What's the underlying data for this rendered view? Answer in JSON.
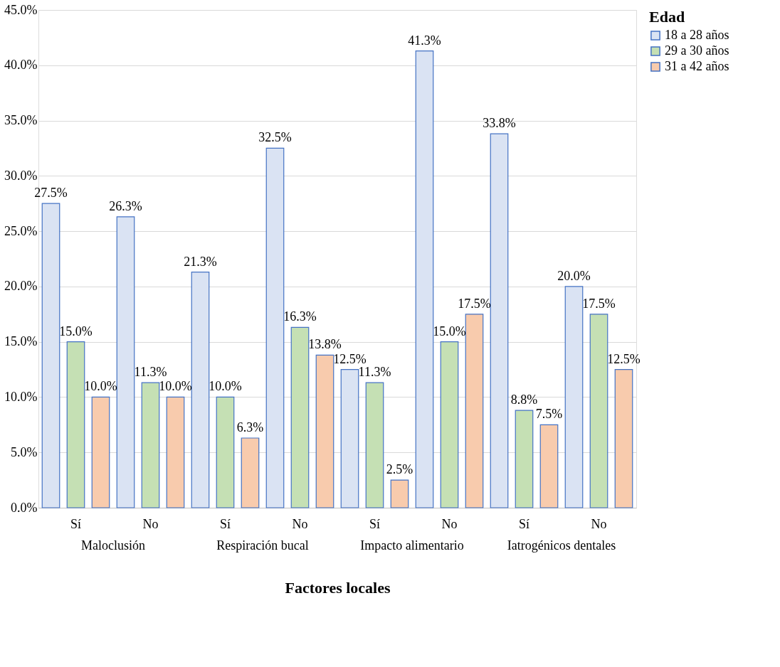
{
  "chart_data": {
    "type": "bar",
    "xlabel": "Factores locales",
    "legend_title": "Edad",
    "categories": [
      "Sí",
      "No",
      "Sí",
      "No",
      "Sí",
      "No",
      "Sí",
      "No"
    ],
    "annotations": [
      "Maloclusión",
      "Respiración bucal",
      "Impacto alimentario",
      "Iatrogénicos dentales"
    ],
    "series": [
      {
        "name": "18 a 28 años",
        "color": "#dae3f3",
        "values": [
          27.5,
          26.3,
          21.3,
          32.5,
          12.5,
          41.3,
          33.8,
          20.0
        ],
        "value_labels": [
          "27.5%",
          "26.3%",
          "21.3%",
          "32.5%",
          "12.5%",
          "41.3%",
          "33.8%",
          "20.0%"
        ]
      },
      {
        "name": "29 a 30 años",
        "color": "#c5e0b4",
        "values": [
          15.0,
          11.3,
          10.0,
          16.3,
          11.3,
          15.0,
          8.8,
          17.5
        ],
        "value_labels": [
          "15.0%",
          "11.3%",
          "10.0%",
          "16.3%",
          "11.3%",
          "15.0%",
          "8.8%",
          "17.5%"
        ]
      },
      {
        "name": "31 a 42 años",
        "color": "#f8cbad",
        "values": [
          10.0,
          10.0,
          6.3,
          13.8,
          2.5,
          17.5,
          7.5,
          12.5
        ],
        "value_labels": [
          "10.0%",
          "10.0%",
          "6.3%",
          "13.8%",
          "2.5%",
          "17.5%",
          "7.5%",
          "12.5%"
        ]
      }
    ],
    "ylim": [
      0,
      45
    ],
    "yticks": [
      {
        "value": 0,
        "label": "0.0%"
      },
      {
        "value": 5,
        "label": "5.0%"
      },
      {
        "value": 10,
        "label": "10.0%"
      },
      {
        "value": 15,
        "label": "15.0%"
      },
      {
        "value": 20,
        "label": "20.0%"
      },
      {
        "value": 25,
        "label": "25.0%"
      },
      {
        "value": 30,
        "label": "30.0%"
      },
      {
        "value": 35,
        "label": "35.0%"
      },
      {
        "value": 40,
        "label": "40.0%"
      },
      {
        "value": 45,
        "label": "45.0%"
      }
    ],
    "grid": "y",
    "legend": "right"
  }
}
